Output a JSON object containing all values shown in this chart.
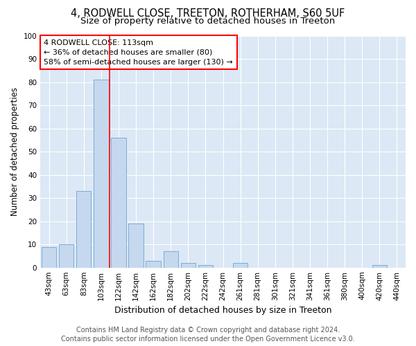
{
  "title": "4, RODWELL CLOSE, TREETON, ROTHERHAM, S60 5UF",
  "subtitle": "Size of property relative to detached houses in Treeton",
  "xlabel": "Distribution of detached houses by size in Treeton",
  "ylabel": "Number of detached properties",
  "categories": [
    "43sqm",
    "63sqm",
    "83sqm",
    "103sqm",
    "122sqm",
    "142sqm",
    "162sqm",
    "182sqm",
    "202sqm",
    "222sqm",
    "242sqm",
    "261sqm",
    "281sqm",
    "301sqm",
    "321sqm",
    "341sqm",
    "361sqm",
    "380sqm",
    "400sqm",
    "420sqm",
    "440sqm"
  ],
  "values": [
    9,
    10,
    33,
    81,
    56,
    19,
    3,
    7,
    2,
    1,
    0,
    2,
    0,
    0,
    0,
    0,
    0,
    0,
    0,
    1,
    0
  ],
  "bar_color": "#c5d8ee",
  "bar_edge_color": "#7aadd4",
  "red_line_x": 3.5,
  "annotation_text": "4 RODWELL CLOSE: 113sqm\n← 36% of detached houses are smaller (80)\n58% of semi-detached houses are larger (130) →",
  "annotation_box_color": "white",
  "annotation_box_edge_color": "red",
  "ylim": [
    0,
    100
  ],
  "yticks": [
    0,
    10,
    20,
    30,
    40,
    50,
    60,
    70,
    80,
    90,
    100
  ],
  "footer_line1": "Contains HM Land Registry data © Crown copyright and database right 2024.",
  "footer_line2": "Contains public sector information licensed under the Open Government Licence v3.0.",
  "bg_color": "#dce8f5",
  "title_fontsize": 10.5,
  "subtitle_fontsize": 9.5,
  "xlabel_fontsize": 9,
  "ylabel_fontsize": 8.5,
  "tick_fontsize": 7.5,
  "annotation_fontsize": 8,
  "footer_fontsize": 7
}
